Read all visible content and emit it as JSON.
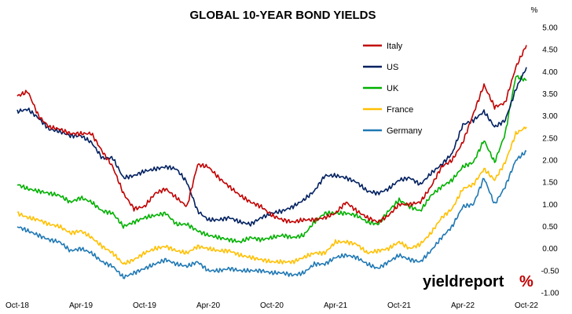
{
  "chart_data": {
    "type": "line",
    "title": "GLOBAL 10-YEAR BOND YIELDS",
    "y_unit": "%",
    "xlabel": "",
    "ylabel": "",
    "ylim": [
      -1.0,
      5.0
    ],
    "y_ticks": [
      "-1.00",
      "-0.50",
      "0.00",
      "0.50",
      "1.00",
      "1.50",
      "2.00",
      "2.50",
      "3.00",
      "3.50",
      "4.00",
      "4.50",
      "5.00"
    ],
    "x_range": [
      "2018-10",
      "2022-10"
    ],
    "x_ticks": [
      {
        "label": "Oct-18",
        "date": "2018-10"
      },
      {
        "label": "Apr-19",
        "date": "2019-04"
      },
      {
        "label": "Oct-19",
        "date": "2019-10"
      },
      {
        "label": "Apr-20",
        "date": "2020-04"
      },
      {
        "label": "Oct-20",
        "date": "2020-10"
      },
      {
        "label": "Apr-21",
        "date": "2021-04"
      },
      {
        "label": "Oct-21",
        "date": "2021-10"
      },
      {
        "label": "Apr-22",
        "date": "2022-04"
      },
      {
        "label": "Oct-22",
        "date": "2022-10"
      }
    ],
    "grid": false,
    "legend_position": "top-right",
    "x": [
      "2018-10",
      "2018-11",
      "2018-12",
      "2019-01",
      "2019-02",
      "2019-03",
      "2019-04",
      "2019-05",
      "2019-06",
      "2019-07",
      "2019-08",
      "2019-09",
      "2019-10",
      "2019-11",
      "2019-12",
      "2020-01",
      "2020-02",
      "2020-03",
      "2020-04",
      "2020-05",
      "2020-06",
      "2020-07",
      "2020-08",
      "2020-09",
      "2020-10",
      "2020-11",
      "2020-12",
      "2021-01",
      "2021-02",
      "2021-03",
      "2021-04",
      "2021-05",
      "2021-06",
      "2021-07",
      "2021-08",
      "2021-09",
      "2021-10",
      "2021-11",
      "2021-12",
      "2022-01",
      "2022-02",
      "2022-03",
      "2022-04",
      "2022-05",
      "2022-06",
      "2022-07",
      "2022-08",
      "2022-09",
      "2022-10"
    ],
    "series": [
      {
        "name": "Italy",
        "color": "#c00000",
        "values": [
          3.45,
          3.55,
          3.0,
          2.75,
          2.7,
          2.6,
          2.6,
          2.6,
          2.2,
          1.85,
          1.25,
          0.9,
          0.95,
          1.25,
          1.35,
          1.15,
          0.95,
          1.9,
          1.85,
          1.6,
          1.4,
          1.2,
          1.05,
          0.95,
          0.75,
          0.65,
          0.6,
          0.65,
          0.65,
          0.7,
          0.8,
          1.05,
          0.85,
          0.7,
          0.6,
          0.75,
          1.0,
          1.0,
          1.05,
          1.4,
          1.85,
          2.0,
          2.4,
          3.05,
          3.7,
          3.2,
          3.3,
          4.1,
          4.6
        ]
      },
      {
        "name": "US",
        "color": "#002060",
        "values": [
          3.1,
          3.15,
          2.95,
          2.7,
          2.65,
          2.55,
          2.55,
          2.4,
          2.05,
          2.05,
          1.6,
          1.65,
          1.75,
          1.8,
          1.85,
          1.8,
          1.5,
          0.85,
          0.65,
          0.65,
          0.7,
          0.6,
          0.55,
          0.7,
          0.8,
          0.85,
          0.95,
          1.1,
          1.3,
          1.65,
          1.65,
          1.6,
          1.5,
          1.3,
          1.25,
          1.35,
          1.55,
          1.6,
          1.45,
          1.7,
          1.9,
          2.15,
          2.8,
          2.9,
          3.1,
          2.75,
          2.9,
          3.6,
          4.1
        ]
      },
      {
        "name": "UK",
        "color": "#00b000",
        "values": [
          1.45,
          1.35,
          1.3,
          1.25,
          1.2,
          1.05,
          1.15,
          1.05,
          0.85,
          0.8,
          0.5,
          0.6,
          0.7,
          0.75,
          0.8,
          0.55,
          0.55,
          0.4,
          0.3,
          0.25,
          0.2,
          0.15,
          0.25,
          0.2,
          0.25,
          0.3,
          0.25,
          0.3,
          0.6,
          0.8,
          0.8,
          0.8,
          0.75,
          0.6,
          0.55,
          0.85,
          1.1,
          0.95,
          0.85,
          1.2,
          1.4,
          1.55,
          1.85,
          1.95,
          2.45,
          1.95,
          2.6,
          3.9,
          3.8
        ]
      },
      {
        "name": "France",
        "color": "#ffc000",
        "values": [
          0.8,
          0.7,
          0.65,
          0.55,
          0.5,
          0.35,
          0.4,
          0.25,
          0.05,
          -0.1,
          -0.35,
          -0.25,
          -0.1,
          0.0,
          0.05,
          -0.05,
          -0.1,
          0.05,
          0.0,
          -0.05,
          -0.05,
          -0.15,
          -0.2,
          -0.25,
          -0.3,
          -0.3,
          -0.3,
          -0.2,
          -0.1,
          -0.1,
          0.15,
          0.15,
          0.1,
          -0.1,
          -0.05,
          0.0,
          0.15,
          0.0,
          0.1,
          0.35,
          0.7,
          0.9,
          1.35,
          1.45,
          1.8,
          1.55,
          1.95,
          2.6,
          2.75
        ]
      },
      {
        "name": "Germany",
        "color": "#1f78b4",
        "values": [
          0.5,
          0.4,
          0.3,
          0.2,
          0.15,
          -0.05,
          0.0,
          -0.1,
          -0.3,
          -0.4,
          -0.65,
          -0.55,
          -0.45,
          -0.35,
          -0.25,
          -0.35,
          -0.4,
          -0.3,
          -0.5,
          -0.5,
          -0.45,
          -0.5,
          -0.5,
          -0.5,
          -0.55,
          -0.55,
          -0.6,
          -0.55,
          -0.35,
          -0.35,
          -0.2,
          -0.15,
          -0.2,
          -0.35,
          -0.45,
          -0.3,
          -0.15,
          -0.25,
          -0.3,
          -0.05,
          0.25,
          0.5,
          0.95,
          1.0,
          1.6,
          1.0,
          1.4,
          2.0,
          2.2
        ]
      }
    ]
  },
  "logo": {
    "text_main": "yieldreport",
    "text_symbol": "%"
  }
}
